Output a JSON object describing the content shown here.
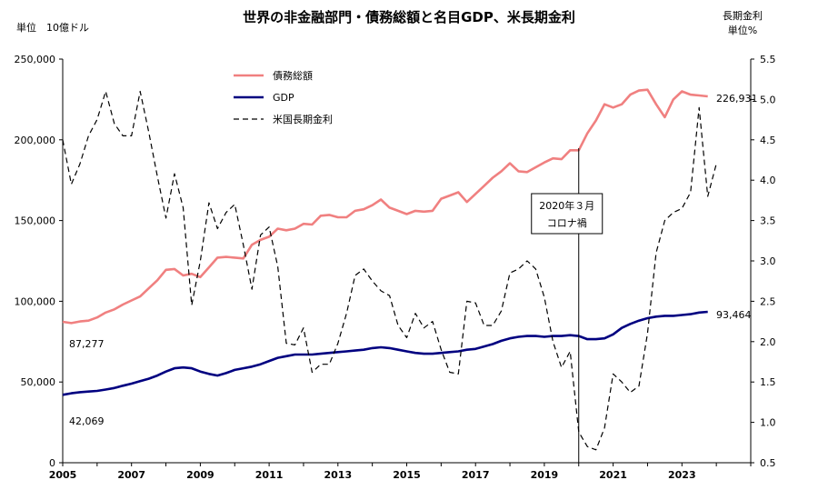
{
  "chart_data": {
    "type": "line",
    "title": "世界の非金融部門・債務総額と名目GDP、米長期金利",
    "ylabel_left": "単位　10億ドル",
    "ylabel_right": [
      "長期金利",
      "単位%"
    ],
    "ylim_left": [
      0,
      250000
    ],
    "ylim_right": [
      0.5,
      5.5
    ],
    "xlim": [
      2005,
      2025
    ],
    "x_tick_labels": [
      "2005",
      "2007",
      "2009",
      "2011",
      "2013",
      "2015",
      "2017",
      "2019",
      "2021",
      "2023"
    ],
    "y_left_tick_labels": [
      "0",
      "50,000",
      "100,000",
      "150,000",
      "200,000",
      "250,000"
    ],
    "y_right_tick_labels": [
      "0.5",
      "1.0",
      "1.5",
      "2.0",
      "2.5",
      "3.0",
      "3.5",
      "4.0",
      "4.5",
      "5.0",
      "5.5"
    ],
    "legend": {
      "placement": "top-center"
    },
    "annotations": [
      {
        "text": [
          "2020年３月",
          "コロナ禍"
        ],
        "x": 2020.0
      }
    ],
    "value_labels": [
      {
        "text": "87,277",
        "series": "債務総額",
        "side": "start"
      },
      {
        "text": "42,069",
        "series": "GDP",
        "side": "start"
      },
      {
        "text": "226,931",
        "series": "債務総額",
        "side": "end"
      },
      {
        "text": "93,464",
        "series": "GDP",
        "side": "end"
      }
    ],
    "series": [
      {
        "name": "債務総額",
        "color": "#f08080",
        "axis": "left",
        "style": "solid",
        "x": [
          2005,
          2005.25,
          2005.5,
          2005.75,
          2006,
          2006.25,
          2006.5,
          2006.75,
          2007,
          2007.25,
          2007.5,
          2007.75,
          2008,
          2008.25,
          2008.5,
          2008.75,
          2009,
          2009.25,
          2009.5,
          2009.75,
          2010,
          2010.25,
          2010.5,
          2010.75,
          2011,
          2011.25,
          2011.5,
          2011.75,
          2012,
          2012.25,
          2012.5,
          2012.75,
          2013,
          2013.25,
          2013.5,
          2013.75,
          2014,
          2014.25,
          2014.5,
          2014.75,
          2015,
          2015.25,
          2015.5,
          2015.75,
          2016,
          2016.25,
          2016.5,
          2016.75,
          2017,
          2017.25,
          2017.5,
          2017.75,
          2018,
          2018.25,
          2018.5,
          2018.75,
          2019,
          2019.25,
          2019.5,
          2019.75,
          2020,
          2020.25,
          2020.5,
          2020.75,
          2021,
          2021.25,
          2021.5,
          2021.75,
          2022,
          2022.25,
          2022.5,
          2022.75,
          2023,
          2023.25,
          2023.5,
          2023.75
        ],
        "values": [
          87277,
          86500,
          87500,
          88000,
          90000,
          93000,
          95000,
          98000,
          100500,
          103000,
          108000,
          113000,
          119500,
          120000,
          116000,
          117000,
          115000,
          121000,
          127000,
          127500,
          127000,
          126500,
          135000,
          138000,
          140000,
          145000,
          144000,
          145000,
          148000,
          147500,
          153000,
          153500,
          152000,
          152000,
          156000,
          157000,
          159500,
          163000,
          158000,
          156000,
          154000,
          156000,
          155500,
          156000,
          163500,
          165500,
          167500,
          161500,
          166500,
          171500,
          176500,
          180500,
          185500,
          180500,
          180000,
          183000,
          186000,
          188500,
          188000,
          193500,
          193500,
          204000,
          212000,
          222000,
          220000,
          222000,
          228000,
          230500,
          231000,
          222000,
          214000,
          225000,
          230000,
          228000,
          227500,
          226931
        ]
      },
      {
        "name": "GDP",
        "color": "#000080",
        "axis": "left",
        "style": "solid",
        "x": [
          2005,
          2005.25,
          2005.5,
          2005.75,
          2006,
          2006.25,
          2006.5,
          2006.75,
          2007,
          2007.25,
          2007.5,
          2007.75,
          2008,
          2008.25,
          2008.5,
          2008.75,
          2009,
          2009.25,
          2009.5,
          2009.75,
          2010,
          2010.25,
          2010.5,
          2010.75,
          2011,
          2011.25,
          2011.5,
          2011.75,
          2012,
          2012.25,
          2012.5,
          2012.75,
          2013,
          2013.25,
          2013.5,
          2013.75,
          2014,
          2014.25,
          2014.5,
          2014.75,
          2015,
          2015.25,
          2015.5,
          2015.75,
          2016,
          2016.25,
          2016.5,
          2016.75,
          2017,
          2017.25,
          2017.5,
          2017.75,
          2018,
          2018.25,
          2018.5,
          2018.75,
          2019,
          2019.25,
          2019.5,
          2019.75,
          2020,
          2020.25,
          2020.5,
          2020.75,
          2021,
          2021.25,
          2021.5,
          2021.75,
          2022,
          2022.25,
          2022.5,
          2022.75,
          2023,
          2023.25,
          2023.5,
          2023.75
        ],
        "values": [
          42069,
          43000,
          43700,
          44100,
          44500,
          45300,
          46300,
          47700,
          49000,
          50500,
          52000,
          54000,
          56500,
          58500,
          59000,
          58500,
          56500,
          55000,
          54000,
          55500,
          57500,
          58500,
          59500,
          61000,
          63000,
          65000,
          66000,
          67000,
          67000,
          67000,
          67500,
          68000,
          68500,
          69000,
          69500,
          70000,
          71000,
          71500,
          71000,
          70000,
          69000,
          68000,
          67500,
          67500,
          68000,
          68500,
          69000,
          70000,
          70500,
          72000,
          73500,
          75500,
          77000,
          78000,
          78500,
          78500,
          78000,
          78500,
          78500,
          79000,
          78500,
          76500,
          76500,
          77000,
          79500,
          83500,
          86000,
          88000,
          89500,
          90500,
          91000,
          91000,
          91500,
          92000,
          93000,
          93464
        ]
      },
      {
        "name": "米国長期金利",
        "color": "#000000",
        "axis": "right",
        "style": "dashed",
        "x": [
          2005,
          2005.25,
          2005.5,
          2005.75,
          2006,
          2006.25,
          2006.5,
          2006.75,
          2007,
          2007.25,
          2007.5,
          2007.75,
          2008,
          2008.25,
          2008.5,
          2008.75,
          2009,
          2009.25,
          2009.5,
          2009.75,
          2010,
          2010.25,
          2010.5,
          2010.75,
          2011,
          2011.25,
          2011.5,
          2011.75,
          2012,
          2012.25,
          2012.5,
          2012.75,
          2013,
          2013.25,
          2013.5,
          2013.75,
          2014,
          2014.25,
          2014.5,
          2014.75,
          2015,
          2015.25,
          2015.5,
          2015.75,
          2016,
          2016.25,
          2016.5,
          2016.75,
          2017,
          2017.25,
          2017.5,
          2017.75,
          2018,
          2018.25,
          2018.5,
          2018.75,
          2019,
          2019.25,
          2019.5,
          2019.75,
          2020,
          2020.25,
          2020.5,
          2020.75,
          2021,
          2021.25,
          2021.5,
          2021.75,
          2022,
          2022.25,
          2022.5,
          2022.75,
          2023,
          2023.25,
          2023.5,
          2023.75,
          2024
        ],
        "values": [
          4.5,
          3.95,
          4.2,
          4.55,
          4.75,
          5.1,
          4.7,
          4.55,
          4.55,
          5.1,
          4.6,
          4.05,
          3.53,
          4.08,
          3.66,
          2.45,
          3.0,
          3.72,
          3.4,
          3.6,
          3.7,
          3.2,
          2.65,
          3.32,
          3.42,
          2.93,
          1.98,
          1.96,
          2.17,
          1.62,
          1.72,
          1.72,
          1.98,
          2.35,
          2.82,
          2.9,
          2.75,
          2.63,
          2.57,
          2.2,
          2.05,
          2.35,
          2.17,
          2.25,
          1.9,
          1.62,
          1.6,
          2.5,
          2.48,
          2.2,
          2.2,
          2.38,
          2.85,
          2.9,
          3.0,
          2.9,
          2.55,
          2.0,
          1.68,
          1.88,
          0.88,
          0.7,
          0.66,
          0.93,
          1.6,
          1.5,
          1.37,
          1.45,
          2.1,
          3.1,
          3.5,
          3.6,
          3.65,
          3.85,
          4.9,
          3.8,
          4.2
        ]
      }
    ]
  }
}
